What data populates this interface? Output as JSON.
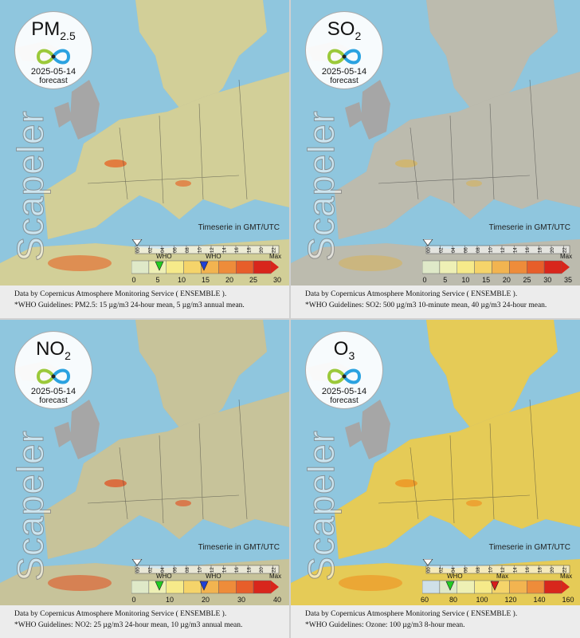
{
  "brand": "Scapeler",
  "timeseries_note": "Timeserie in GMT/UTC",
  "time_ticks": [
    "00",
    "02",
    "04",
    "06",
    "08",
    "10",
    "12",
    "14",
    "16",
    "18",
    "20",
    "22"
  ],
  "who_label": "WHO",
  "max_label": "Max",
  "colors": {
    "sea": "#8fc6de",
    "land": "#a6a6a6",
    "footer": "#ececec",
    "who_green": "#22cc22",
    "who_blue": "#1f3fd6",
    "who_red": "#d81c1c"
  },
  "panels": [
    {
      "id": "pm25",
      "pollutant": "PM",
      "subscript": "2.5",
      "date": "2025-05-14",
      "label": "forecast",
      "scale": [
        "0",
        "5",
        "10",
        "15",
        "20",
        "25",
        "30"
      ],
      "who_markers": [
        "green",
        "blue"
      ],
      "source_line": "Data by Copernicus Atmosphere Monitoring Service ( ENSEMBLE ).",
      "who_line": "*WHO Guidelines: PM2.5: 15 µg/m3 24-hour mean, 5 µg/m3 annual mean."
    },
    {
      "id": "so2",
      "pollutant": "SO",
      "subscript": "2",
      "date": "2025-05-14",
      "label": "forecast",
      "scale": [
        "0",
        "5",
        "10",
        "15",
        "20",
        "25",
        "30",
        "35"
      ],
      "who_markers": [],
      "source_line": "Data by Copernicus Atmosphere Monitoring Service ( ENSEMBLE ).",
      "who_line": "*WHO Guidelines: SO2: 500 µg/m3 10-minute mean, 40 µg/m3 24-hour mean."
    },
    {
      "id": "no2",
      "pollutant": "NO",
      "subscript": "2",
      "date": "2025-05-14",
      "label": "forecast",
      "scale": [
        "0",
        "10",
        "20",
        "30",
        "40"
      ],
      "who_markers": [
        "green",
        "blue"
      ],
      "source_line": "Data by Copernicus Atmosphere Monitoring Service ( ENSEMBLE ).",
      "who_line": "*WHO Guidelines: NO2: 25 µg/m3 24-hour mean, 10 µg/m3 annual mean."
    },
    {
      "id": "o3",
      "pollutant": "O",
      "subscript": "3",
      "date": "2025-05-14",
      "label": "forecast",
      "scale": [
        "60",
        "80",
        "100",
        "120",
        "140",
        "160"
      ],
      "who_markers": [
        "green",
        "red"
      ],
      "source_line": "Data by Copernicus Atmosphere Monitoring Service ( ENSEMBLE ).",
      "who_line": "*WHO Guidelines: Ozone: 100 µg/m3 8-hour mean."
    }
  ]
}
